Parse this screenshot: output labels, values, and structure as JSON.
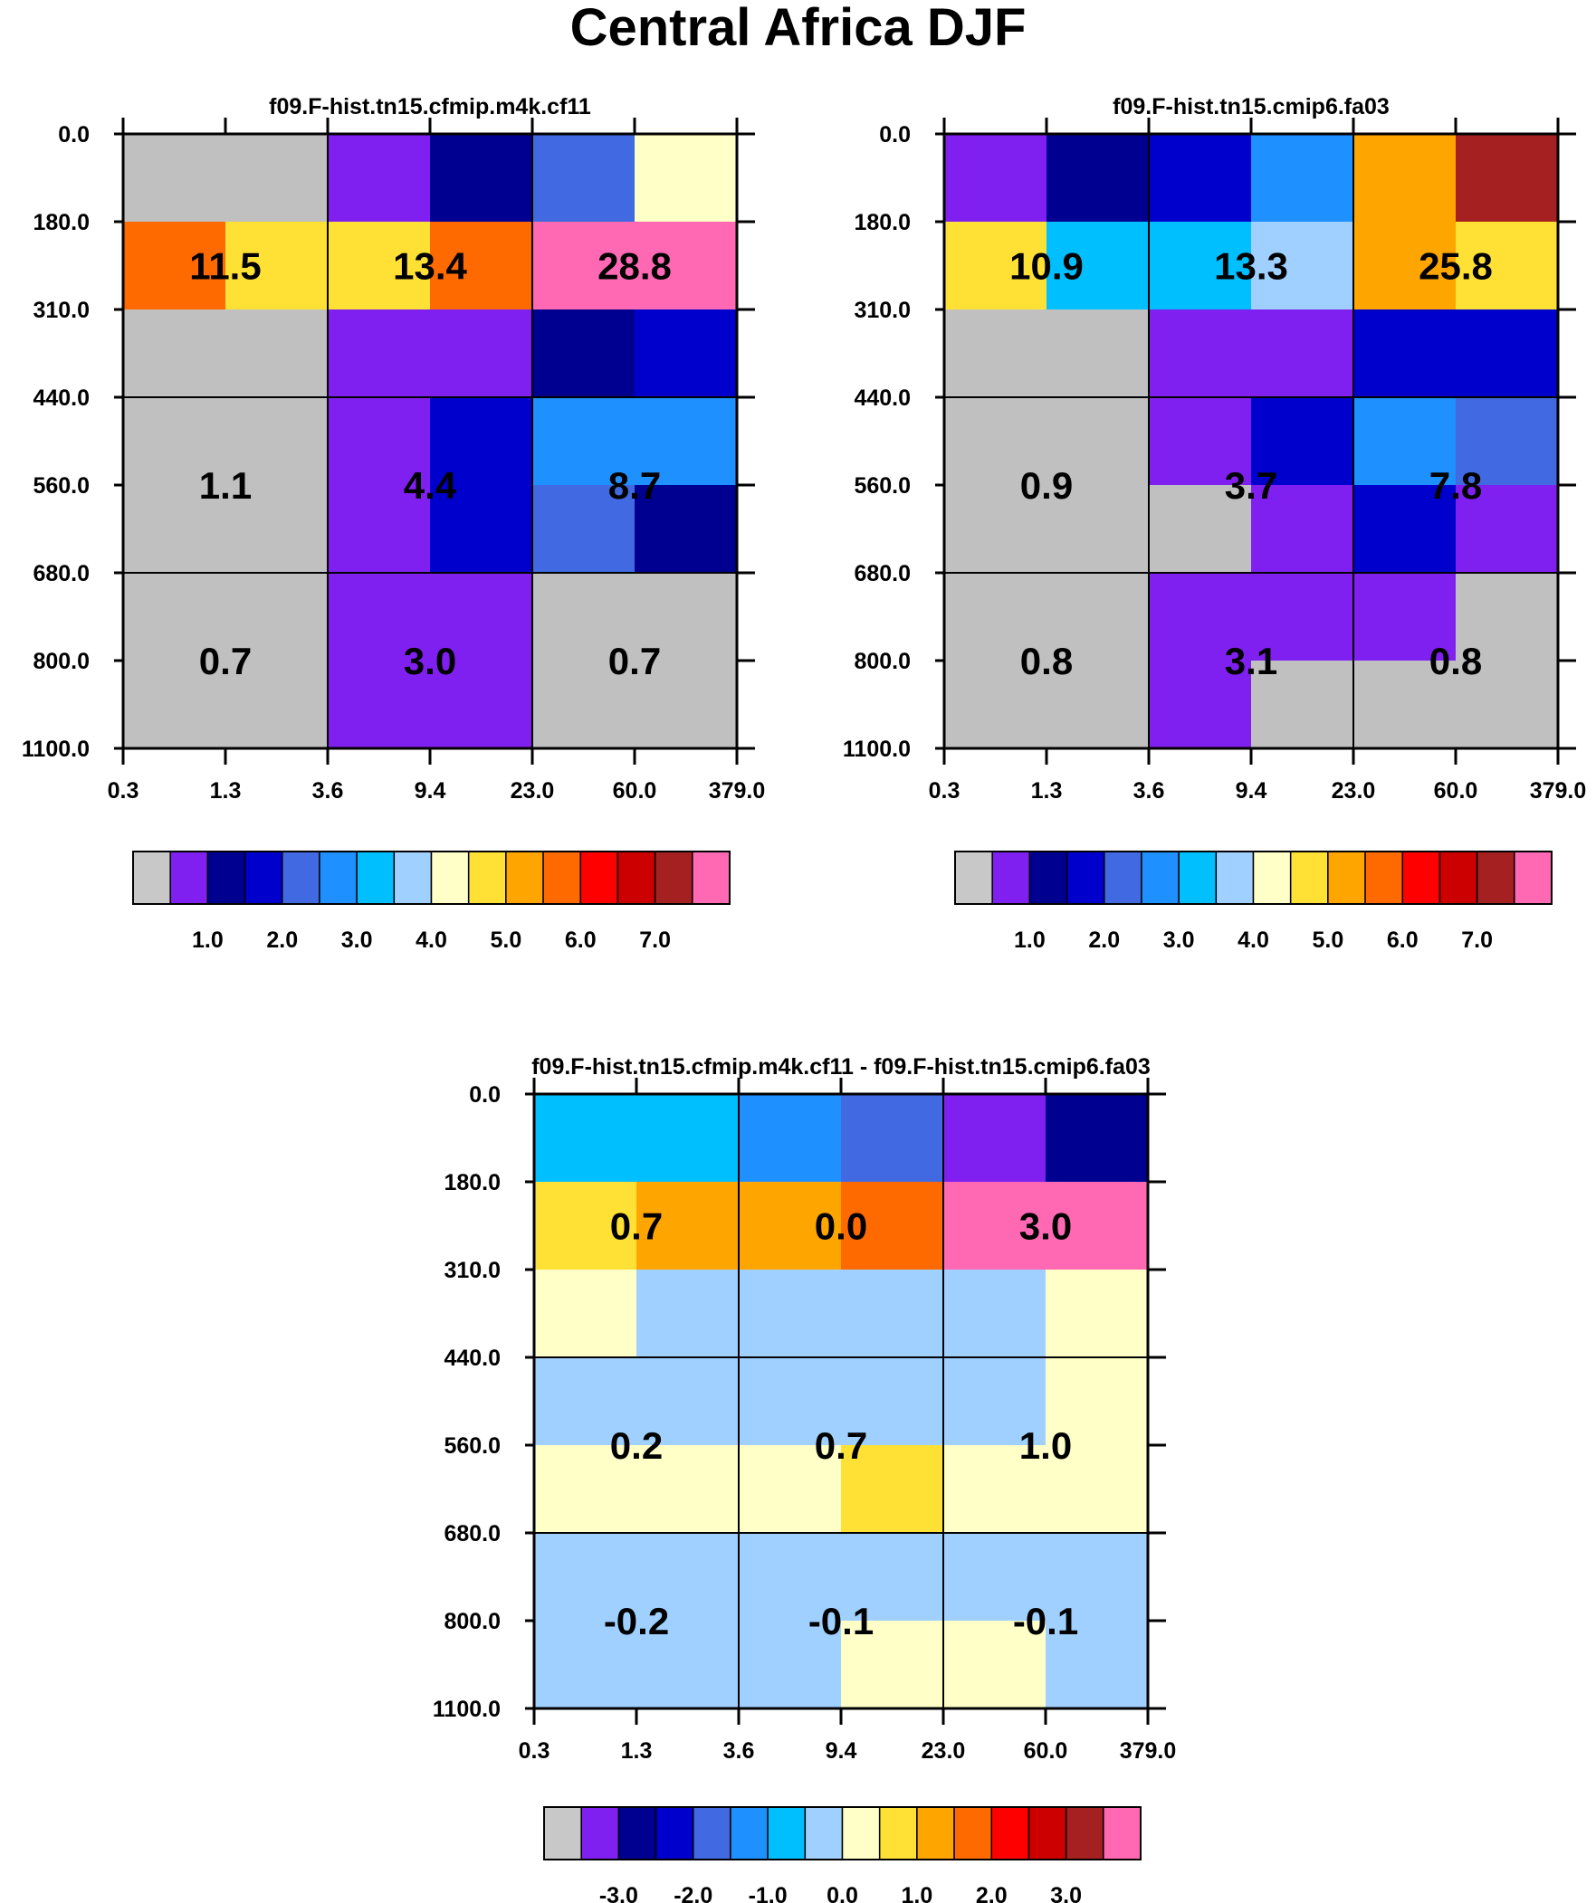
{
  "title": "Central Africa DJF",
  "chart_data": [
    {
      "type": "heatmap",
      "title": "f09.F-hist.tn15.cfmip.m4k.cf11",
      "x_ticks": [
        "0.3",
        "1.3",
        "3.6",
        "9.4",
        "23.0",
        "60.0",
        "379.0"
      ],
      "y_ticks": [
        "0.0",
        "180.0",
        "310.0",
        "440.0",
        "560.0",
        "680.0",
        "800.0",
        "1100.0"
      ],
      "cell_colors": [
        [
          "#c0c0c0",
          "#c0c0c0",
          "#8020f0",
          "#000090",
          "#4169e1",
          "#ffffc8"
        ],
        [
          "#ff6a00",
          "#ffe135",
          "#ffe135",
          "#ff6a00",
          "#ff69b4",
          "#ff69b4"
        ],
        [
          "#c0c0c0",
          "#c0c0c0",
          "#8020f0",
          "#8020f0",
          "#000090",
          "#0000cd"
        ],
        [
          "#c0c0c0",
          "#c0c0c0",
          "#8020f0",
          "#0000cd",
          "#1e90ff",
          "#1e90ff"
        ],
        [
          "#c0c0c0",
          "#c0c0c0",
          "#8020f0",
          "#0000cd",
          "#4169e1",
          "#000090"
        ],
        [
          "#c0c0c0",
          "#c0c0c0",
          "#8020f0",
          "#8020f0",
          "#c0c0c0",
          "#c0c0c0"
        ],
        [
          "#c0c0c0",
          "#c0c0c0",
          "#8020f0",
          "#8020f0",
          "#c0c0c0",
          "#c0c0c0"
        ]
      ],
      "box_values": [
        [
          "11.5",
          "13.4",
          "28.8"
        ],
        [
          "1.1",
          "4.4",
          "8.7"
        ],
        [
          "0.7",
          "3.0",
          "0.7"
        ]
      ],
      "colorbar": {
        "colors": [
          "#c8c8c8",
          "#8020f0",
          "#000090",
          "#0000cd",
          "#4169e1",
          "#1e90ff",
          "#00bfff",
          "#a0d0ff",
          "#ffffc8",
          "#ffe135",
          "#ffa500",
          "#ff6a00",
          "#ff0000",
          "#cd0000",
          "#a52020",
          "#ff69b4"
        ],
        "labels": [
          "1.0",
          "2.0",
          "3.0",
          "4.0",
          "5.0",
          "6.0",
          "7.0"
        ]
      }
    },
    {
      "type": "heatmap",
      "title": "f09.F-hist.tn15.cmip6.fa03",
      "x_ticks": [
        "0.3",
        "1.3",
        "3.6",
        "9.4",
        "23.0",
        "60.0",
        "379.0"
      ],
      "y_ticks": [
        "0.0",
        "180.0",
        "310.0",
        "440.0",
        "560.0",
        "680.0",
        "800.0",
        "1100.0"
      ],
      "cell_colors": [
        [
          "#8020f0",
          "#000090",
          "#0000cd",
          "#1e90ff",
          "#ffa500",
          "#a52020"
        ],
        [
          "#ffe135",
          "#00bfff",
          "#00bfff",
          "#a0d0ff",
          "#ffa500",
          "#ffe135"
        ],
        [
          "#c0c0c0",
          "#c0c0c0",
          "#8020f0",
          "#8020f0",
          "#0000cd",
          "#0000cd"
        ],
        [
          "#c0c0c0",
          "#c0c0c0",
          "#8020f0",
          "#0000cd",
          "#1e90ff",
          "#4169e1"
        ],
        [
          "#c0c0c0",
          "#c0c0c0",
          "#c0c0c0",
          "#8020f0",
          "#0000cd",
          "#8020f0"
        ],
        [
          "#c0c0c0",
          "#c0c0c0",
          "#8020f0",
          "#8020f0",
          "#8020f0",
          "#c0c0c0"
        ],
        [
          "#c0c0c0",
          "#c0c0c0",
          "#8020f0",
          "#c0c0c0",
          "#c0c0c0",
          "#c0c0c0"
        ]
      ],
      "box_values": [
        [
          "10.9",
          "13.3",
          "25.8"
        ],
        [
          "0.9",
          "3.7",
          "7.8"
        ],
        [
          "0.8",
          "3.1",
          "0.8"
        ]
      ],
      "colorbar": {
        "colors": [
          "#c8c8c8",
          "#8020f0",
          "#000090",
          "#0000cd",
          "#4169e1",
          "#1e90ff",
          "#00bfff",
          "#a0d0ff",
          "#ffffc8",
          "#ffe135",
          "#ffa500",
          "#ff6a00",
          "#ff0000",
          "#cd0000",
          "#a52020",
          "#ff69b4"
        ],
        "labels": [
          "1.0",
          "2.0",
          "3.0",
          "4.0",
          "5.0",
          "6.0",
          "7.0"
        ]
      }
    },
    {
      "type": "heatmap",
      "title": "f09.F-hist.tn15.cfmip.m4k.cf11 - f09.F-hist.tn15.cmip6.fa03",
      "x_ticks": [
        "0.3",
        "1.3",
        "3.6",
        "9.4",
        "23.0",
        "60.0",
        "379.0"
      ],
      "y_ticks": [
        "0.0",
        "180.0",
        "310.0",
        "440.0",
        "560.0",
        "680.0",
        "800.0",
        "1100.0"
      ],
      "cell_colors": [
        [
          "#00bfff",
          "#00bfff",
          "#1e90ff",
          "#4169e1",
          "#8020f0",
          "#000090"
        ],
        [
          "#ffe135",
          "#ffa500",
          "#ffa500",
          "#ff6a00",
          "#ff69b4",
          "#ff69b4"
        ],
        [
          "#ffffc8",
          "#a0d0ff",
          "#a0d0ff",
          "#a0d0ff",
          "#a0d0ff",
          "#ffffc8"
        ],
        [
          "#a0d0ff",
          "#a0d0ff",
          "#a0d0ff",
          "#a0d0ff",
          "#a0d0ff",
          "#ffffc8"
        ],
        [
          "#ffffc8",
          "#ffffc8",
          "#ffffc8",
          "#ffe135",
          "#ffffc8",
          "#ffffc8"
        ],
        [
          "#a0d0ff",
          "#a0d0ff",
          "#a0d0ff",
          "#a0d0ff",
          "#a0d0ff",
          "#a0d0ff"
        ],
        [
          "#a0d0ff",
          "#a0d0ff",
          "#a0d0ff",
          "#ffffc8",
          "#ffffc8",
          "#a0d0ff"
        ]
      ],
      "box_values": [
        [
          "0.7",
          "0.0",
          "3.0"
        ],
        [
          "0.2",
          "0.7",
          "1.0"
        ],
        [
          "-0.2",
          "-0.1",
          "-0.1"
        ]
      ],
      "colorbar": {
        "colors": [
          "#c8c8c8",
          "#8020f0",
          "#000090",
          "#0000cd",
          "#4169e1",
          "#1e90ff",
          "#00bfff",
          "#a0d0ff",
          "#ffffc8",
          "#ffe135",
          "#ffa500",
          "#ff6a00",
          "#ff0000",
          "#cd0000",
          "#a52020",
          "#ff69b4"
        ],
        "labels": [
          "-3.0",
          "-2.0",
          "-1.0",
          "0.0",
          "1.0",
          "2.0",
          "3.0"
        ]
      }
    }
  ]
}
